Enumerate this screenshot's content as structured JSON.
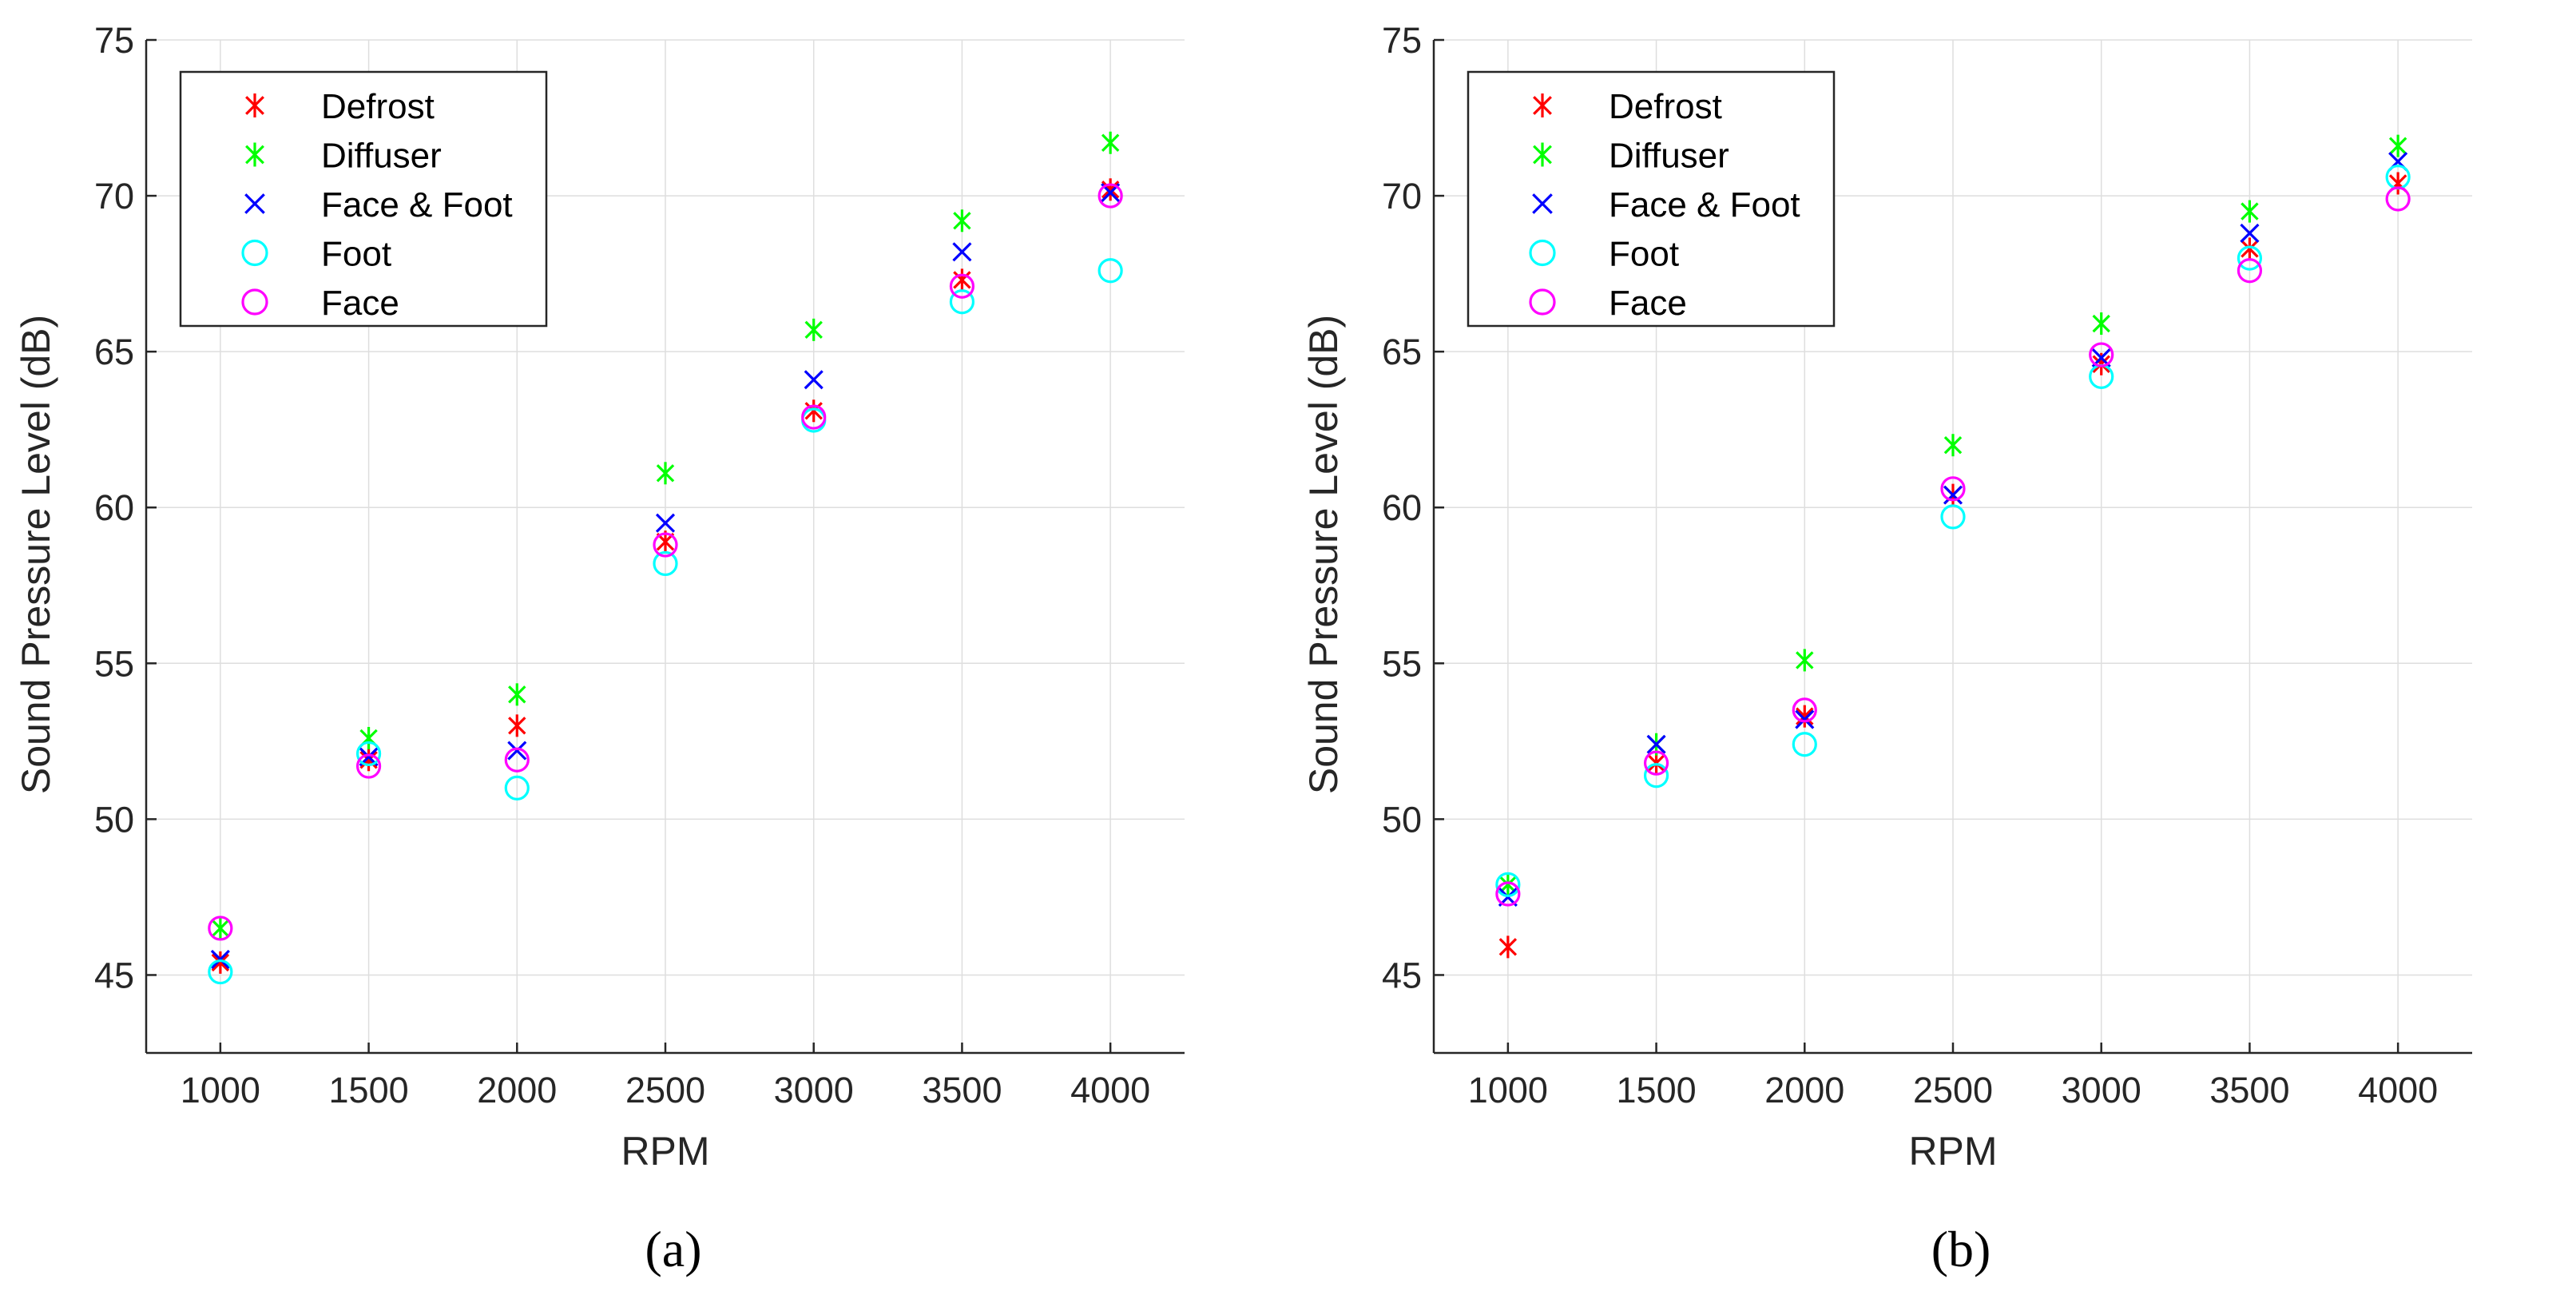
{
  "chart_data": [
    {
      "type": "scatter",
      "panel_label": "a",
      "xlabel": "RPM",
      "ylabel": "Sound Pressure Level (dB)",
      "x_ticks": [
        1000,
        1500,
        2000,
        2500,
        3000,
        3500,
        4000
      ],
      "y_ticks": [
        45,
        50,
        55,
        60,
        65,
        70,
        75
      ],
      "xlim": [
        750,
        4250
      ],
      "ylim": [
        42.5,
        75
      ],
      "grid": true,
      "legend_position": "top-left",
      "series": [
        {
          "name": "Defrost",
          "marker": "asterisk",
          "color": "#ff0000",
          "values": [
            45.4,
            51.9,
            53.0,
            58.9,
            63.1,
            67.3,
            70.2
          ]
        },
        {
          "name": "Diffuser",
          "marker": "asterisk",
          "color": "#00ff00",
          "values": [
            46.5,
            52.6,
            54.0,
            61.1,
            65.7,
            69.2,
            71.7
          ]
        },
        {
          "name": "Face & Foot",
          "marker": "x",
          "color": "#0000ff",
          "values": [
            45.5,
            52.0,
            52.2,
            59.5,
            64.1,
            68.2,
            70.1
          ]
        },
        {
          "name": "Foot",
          "marker": "circle",
          "color": "#00ffff",
          "values": [
            45.1,
            52.1,
            51.0,
            58.2,
            62.8,
            66.6,
            67.6
          ]
        },
        {
          "name": "Face",
          "marker": "circle",
          "color": "#ff00ff",
          "values": [
            46.5,
            51.7,
            51.9,
            58.8,
            62.9,
            67.1,
            70.0
          ]
        }
      ],
      "x": [
        1000,
        1500,
        2000,
        2500,
        3000,
        3500,
        4000
      ]
    },
    {
      "type": "scatter",
      "panel_label": "b",
      "xlabel": "RPM",
      "ylabel": "Sound Pressure Level (dB)",
      "x_ticks": [
        1000,
        1500,
        2000,
        2500,
        3000,
        3500,
        4000
      ],
      "y_ticks": [
        45,
        50,
        55,
        60,
        65,
        70,
        75
      ],
      "xlim": [
        750,
        4250
      ],
      "ylim": [
        42.5,
        75
      ],
      "grid": true,
      "legend_position": "top-left",
      "series": [
        {
          "name": "Defrost",
          "marker": "asterisk",
          "color": "#ff0000",
          "values": [
            45.9,
            51.8,
            53.3,
            60.4,
            64.6,
            68.3,
            70.4
          ]
        },
        {
          "name": "Diffuser",
          "marker": "asterisk",
          "color": "#00ff00",
          "values": [
            47.9,
            52.4,
            55.1,
            62.0,
            65.9,
            69.5,
            71.6
          ]
        },
        {
          "name": "Face & Foot",
          "marker": "x",
          "color": "#0000ff",
          "values": [
            47.5,
            52.4,
            53.2,
            60.4,
            64.8,
            68.8,
            71.1
          ]
        },
        {
          "name": "Foot",
          "marker": "circle",
          "color": "#00ffff",
          "values": [
            47.9,
            51.4,
            52.4,
            59.7,
            64.2,
            68.0,
            70.6
          ]
        },
        {
          "name": "Face",
          "marker": "circle",
          "color": "#ff00ff",
          "values": [
            47.6,
            51.8,
            53.5,
            60.6,
            64.9,
            67.6,
            69.9
          ]
        }
      ],
      "x": [
        1000,
        1500,
        2000,
        2500,
        3000,
        3500,
        4000
      ]
    }
  ],
  "captions": [
    "(a)",
    "(b)"
  ]
}
